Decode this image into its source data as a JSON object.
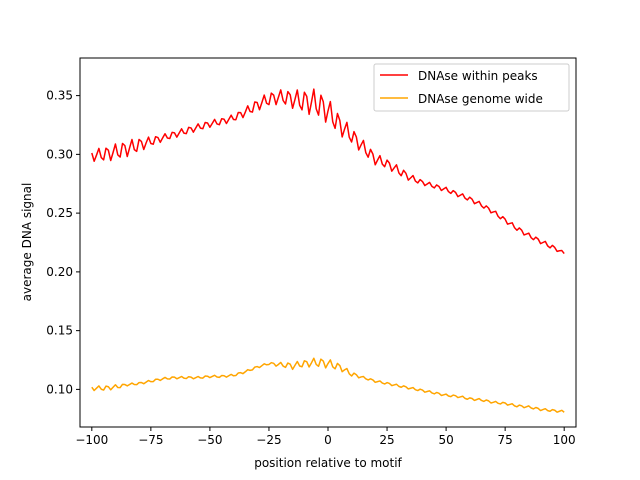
{
  "chart_data": {
    "type": "line",
    "title": "",
    "xlabel": "position relative to motif",
    "ylabel": "average DNA signal",
    "xlim": [
      -105,
      105
    ],
    "ylim": [
      0.068,
      0.382
    ],
    "xticks": [
      -100,
      -75,
      -50,
      -25,
      0,
      25,
      50,
      75,
      100
    ],
    "xtick_labels": [
      "−100",
      "−75",
      "−50",
      "−25",
      "0",
      "25",
      "50",
      "75",
      "100"
    ],
    "yticks": [
      0.1,
      0.15,
      0.2,
      0.25,
      0.3,
      0.35
    ],
    "ytick_labels": [
      "0.10",
      "0.15",
      "0.20",
      "0.25",
      "0.30",
      "0.35"
    ],
    "grid": false,
    "legend_position": "top-right",
    "series": [
      {
        "name": "DNAse within peaks",
        "color": "#ff0000",
        "envelope_x": [
          -100,
          -95,
          -90,
          -85,
          -80,
          -75,
          -70,
          -65,
          -60,
          -55,
          -50,
          -45,
          -40,
          -35,
          -30,
          -25,
          -20,
          -15,
          -10,
          -5,
          0,
          5,
          10,
          15,
          20,
          25,
          30,
          35,
          40,
          45,
          50,
          55,
          60,
          65,
          70,
          75,
          80,
          85,
          90,
          95,
          100
        ],
        "envelope_y": [
          0.299,
          0.3,
          0.302,
          0.305,
          0.308,
          0.311,
          0.314,
          0.317,
          0.32,
          0.323,
          0.326,
          0.328,
          0.331,
          0.336,
          0.342,
          0.347,
          0.349,
          0.347,
          0.345,
          0.344,
          0.337,
          0.325,
          0.316,
          0.306,
          0.296,
          0.292,
          0.286,
          0.28,
          0.276,
          0.273,
          0.27,
          0.266,
          0.262,
          0.257,
          0.251,
          0.244,
          0.237,
          0.231,
          0.226,
          0.221,
          0.216
        ],
        "oscillation_x": [
          -100,
          -95,
          -90,
          -85,
          -80,
          -75,
          -70,
          -65,
          -60,
          -55,
          -50,
          -45,
          -40,
          -35,
          -30,
          -25,
          -20,
          -15,
          -10,
          -5,
          0,
          5,
          10,
          15,
          20,
          25,
          30,
          35,
          40,
          45,
          50,
          55,
          60,
          65,
          70,
          75,
          80,
          85,
          90,
          95,
          100
        ],
        "oscillation_amplitude": [
          0.005,
          0.006,
          0.007,
          0.007,
          0.006,
          0.004,
          0.003,
          0.003,
          0.003,
          0.003,
          0.003,
          0.003,
          0.003,
          0.004,
          0.005,
          0.006,
          0.006,
          0.008,
          0.01,
          0.012,
          0.011,
          0.009,
          0.007,
          0.006,
          0.005,
          0.004,
          0.004,
          0.003,
          0.002,
          0.002,
          0.002,
          0.002,
          0.002,
          0.002,
          0.002,
          0.002,
          0.002,
          0.002,
          0.002,
          0.002,
          0.001
        ],
        "oscillation_period": 3.5
      },
      {
        "name": "DNAse genome wide",
        "color": "#ffa500",
        "envelope_x": [
          -100,
          -95,
          -90,
          -85,
          -80,
          -75,
          -70,
          -65,
          -60,
          -55,
          -50,
          -45,
          -40,
          -35,
          -30,
          -25,
          -20,
          -15,
          -10,
          -5,
          0,
          5,
          10,
          15,
          20,
          25,
          30,
          35,
          40,
          45,
          50,
          55,
          60,
          65,
          70,
          75,
          80,
          85,
          90,
          95,
          100
        ],
        "envelope_y": [
          0.101,
          0.101,
          0.102,
          0.104,
          0.105,
          0.107,
          0.109,
          0.11,
          0.11,
          0.11,
          0.111,
          0.111,
          0.112,
          0.115,
          0.119,
          0.122,
          0.121,
          0.12,
          0.122,
          0.123,
          0.122,
          0.119,
          0.113,
          0.11,
          0.107,
          0.105,
          0.103,
          0.101,
          0.099,
          0.097,
          0.095,
          0.094,
          0.092,
          0.091,
          0.089,
          0.088,
          0.086,
          0.085,
          0.083,
          0.082,
          0.081
        ],
        "oscillation_x": [
          -100,
          -95,
          -90,
          -85,
          -80,
          -75,
          -70,
          -65,
          -60,
          -55,
          -50,
          -45,
          -40,
          -35,
          -30,
          -25,
          -20,
          -15,
          -10,
          -5,
          0,
          5,
          10,
          15,
          20,
          25,
          30,
          35,
          40,
          45,
          50,
          55,
          60,
          65,
          70,
          75,
          80,
          85,
          90,
          95,
          100
        ],
        "oscillation_amplitude": [
          0.002,
          0.002,
          0.002,
          0.001,
          0.001,
          0.001,
          0.001,
          0.001,
          0.001,
          0.001,
          0.001,
          0.001,
          0.001,
          0.001,
          0.001,
          0.001,
          0.002,
          0.003,
          0.003,
          0.004,
          0.004,
          0.003,
          0.002,
          0.001,
          0.001,
          0.001,
          0.001,
          0.001,
          0.001,
          0.001,
          0.001,
          0.001,
          0.001,
          0.001,
          0.001,
          0.001,
          0.001,
          0.001,
          0.001,
          0.001,
          0.001
        ],
        "oscillation_period": 3.5
      }
    ]
  }
}
